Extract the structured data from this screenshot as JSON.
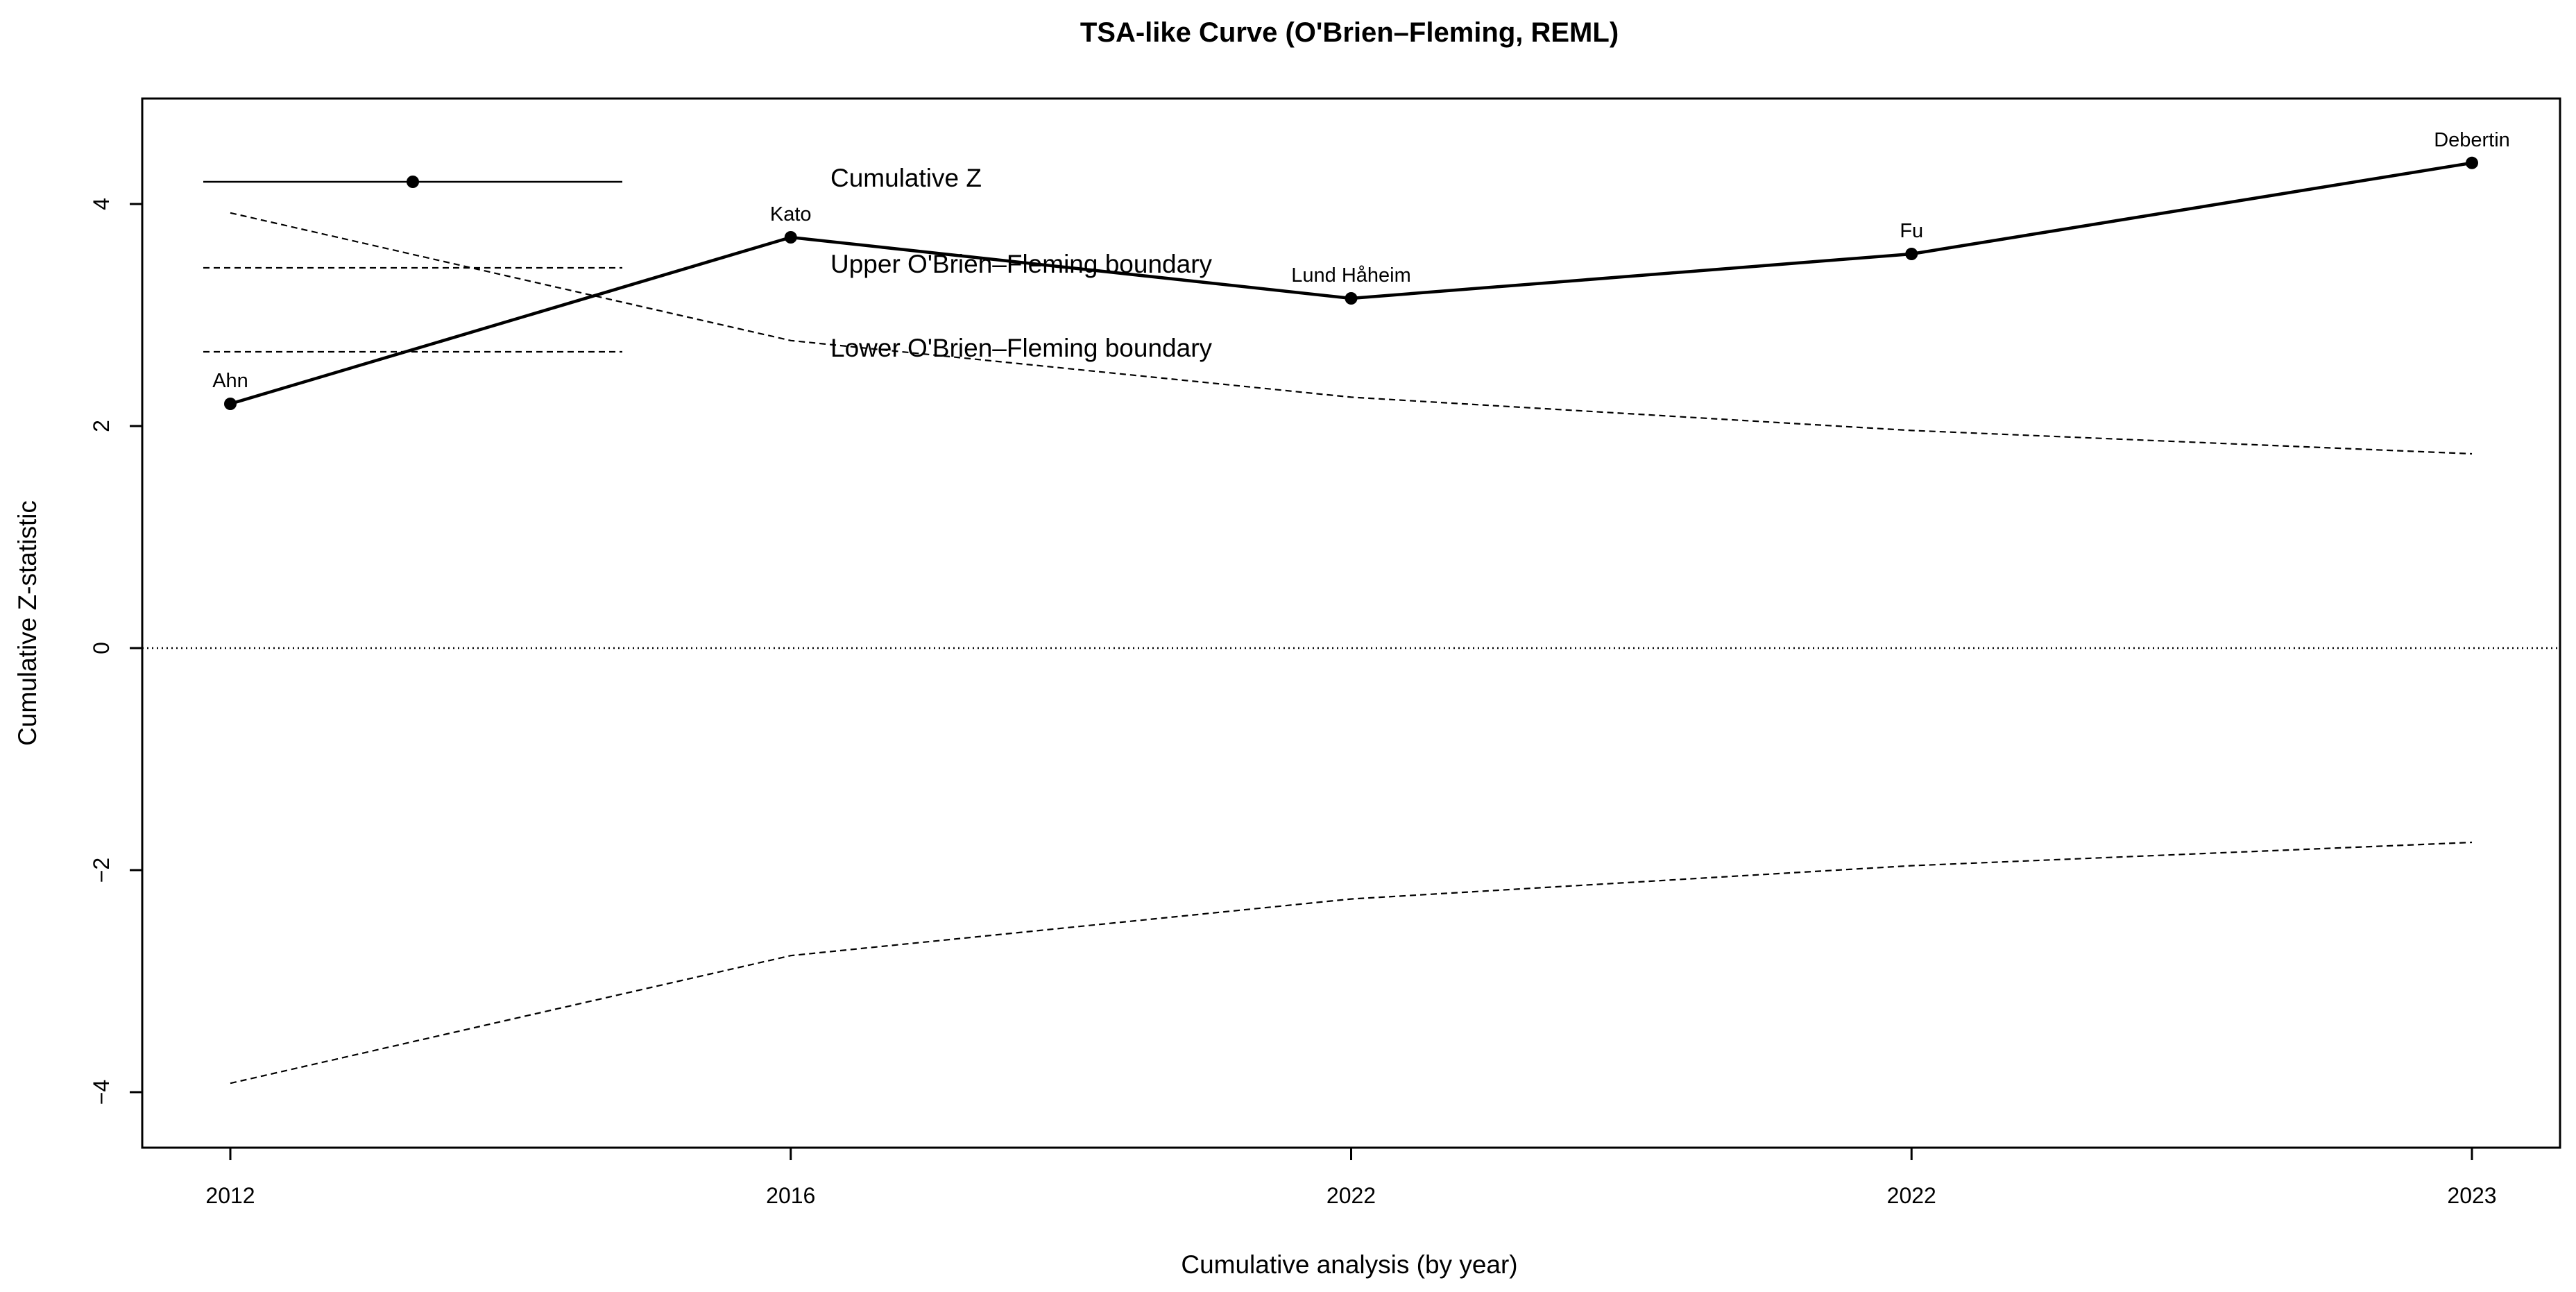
{
  "chart_data": {
    "type": "line",
    "title": "TSA-like Curve (O'Brien–Fleming, REML)",
    "xlabel": "Cumulative analysis (by year)",
    "ylabel": "Cumulative Z-statistic",
    "categories": [
      "2012",
      "2016",
      "2022",
      "2022",
      "2023"
    ],
    "study_labels": [
      "Ahn",
      "Kato",
      "Lund Håheim",
      "Fu",
      "Debertin"
    ],
    "ylim": [
      -4.5,
      4.95
    ],
    "yticks": [
      -4,
      -2,
      0,
      2,
      4
    ],
    "ytick_labels": [
      "−4",
      "−2",
      "0",
      "2",
      "4"
    ],
    "reference_line_y": 0,
    "series": [
      {
        "name": "Cumulative Z",
        "values": [
          2.2,
          3.7,
          3.15,
          3.55,
          4.37
        ]
      },
      {
        "name": "Upper O'Brien–Fleming boundary",
        "values": [
          3.92,
          2.77,
          2.26,
          1.96,
          1.75
        ]
      },
      {
        "name": "Lower O'Brien–Fleming boundary",
        "values": [
          -3.92,
          -2.77,
          -2.26,
          -1.96,
          -1.75
        ]
      }
    ],
    "legend": {
      "entries": [
        "Cumulative Z",
        "Upper O'Brien–Fleming boundary",
        "Lower O'Brien–Fleming boundary"
      ],
      "placement": "top-left",
      "frame": false
    },
    "grid": false
  }
}
